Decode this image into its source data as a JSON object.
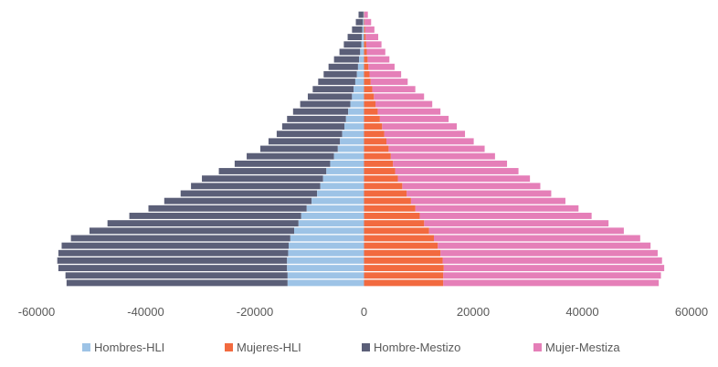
{
  "chart_data": {
    "type": "bar",
    "orientation": "horizontal",
    "stacking": "population-pyramid",
    "title": "",
    "xlabel": "",
    "ylabel": "",
    "xlim": [
      -60000,
      60000
    ],
    "grid": false,
    "legend_position": "bottom",
    "x_ticks": [
      -60000,
      -40000,
      -20000,
      0,
      20000,
      40000,
      60000
    ],
    "x_tick_labels": [
      "-60000",
      "-40000",
      "-20000",
      "0",
      "20000",
      "40000",
      "60000"
    ],
    "series": [
      {
        "name": "Hombres-HLI",
        "color": "#9dc3e6",
        "values": [
          -14000,
          -14000,
          -14100,
          -14100,
          -13900,
          -13800,
          -13500,
          -12800,
          -12000,
          -11500,
          -10500,
          -9600,
          -8600,
          -8000,
          -7500,
          -6900,
          -6200,
          -5500,
          -4800,
          -4400,
          -4000,
          -3600,
          -3300,
          -2900,
          -2500,
          -2200,
          -1900,
          -1600,
          -1300,
          -1100,
          -900,
          -700,
          -500,
          -400,
          -300,
          -200,
          -100
        ]
      },
      {
        "name": "Mujeres-HLI",
        "color": "#f26a3f",
        "values": [
          14500,
          14500,
          14600,
          14400,
          14000,
          13500,
          12800,
          11900,
          11000,
          10200,
          9400,
          8600,
          7800,
          7000,
          6200,
          5700,
          5300,
          4900,
          4500,
          4100,
          3700,
          3300,
          2900,
          2500,
          2100,
          1800,
          1500,
          1200,
          1000,
          800,
          650,
          500,
          400,
          300,
          200,
          100,
          50
        ]
      },
      {
        "name": "Hombre-Mestizo",
        "color": "#5b5f78",
        "values": [
          -40500,
          -40700,
          -41900,
          -42100,
          -42100,
          -41600,
          -40200,
          -37500,
          -35000,
          -31500,
          -29000,
          -27000,
          -25000,
          -23700,
          -22200,
          -19700,
          -17500,
          -16000,
          -14200,
          -13100,
          -12000,
          -11400,
          -10800,
          -10100,
          -9200,
          -8100,
          -7500,
          -6800,
          -6100,
          -5400,
          -4600,
          -3800,
          -3200,
          -2600,
          -1900,
          -1300,
          -900
        ]
      },
      {
        "name": "Mujer-Mestiza",
        "color": "#e57fb8",
        "values": [
          39500,
          39900,
          40400,
          40200,
          39800,
          39000,
          37800,
          35700,
          33800,
          31500,
          29900,
          28300,
          26500,
          25300,
          24200,
          22600,
          20900,
          19100,
          17600,
          16000,
          14800,
          13700,
          12600,
          11500,
          10400,
          9200,
          7900,
          6800,
          5800,
          4800,
          4000,
          3400,
          2800,
          2300,
          1700,
          1200,
          650
        ]
      }
    ],
    "legend": [
      "Hombres-HLI",
      "Mujeres-HLI",
      "Hombre-Mestizo",
      "Mujer-Mestiza"
    ]
  }
}
